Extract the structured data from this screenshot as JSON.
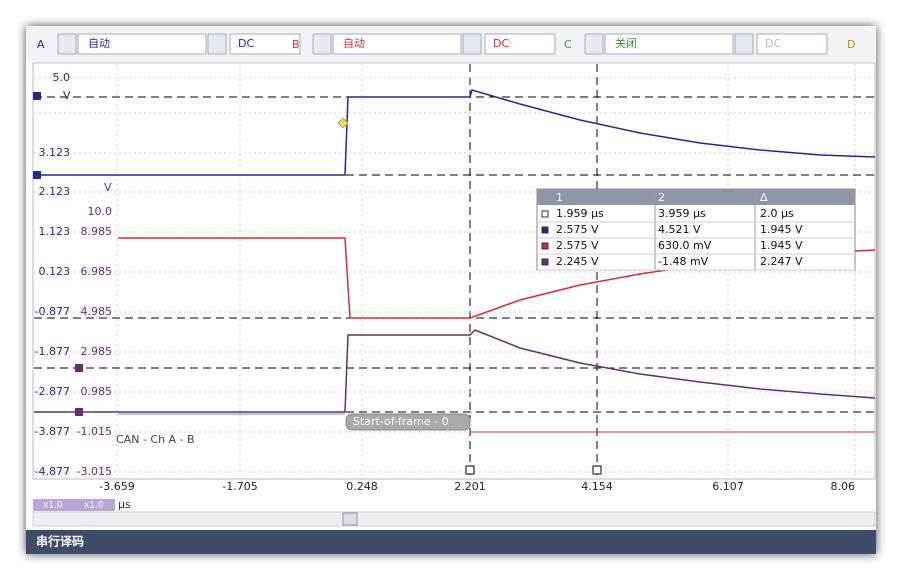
{
  "toolbar": {
    "channels": [
      {
        "name": "A",
        "range": "自动",
        "coupling": "DC"
      },
      {
        "name": "B",
        "range": "自动",
        "coupling": "DC"
      },
      {
        "name": "C",
        "range": "关闭",
        "coupling": "DC"
      },
      {
        "name": "D"
      }
    ]
  },
  "axis_a": {
    "unit": "V",
    "labels": [
      "5.0",
      "3.123",
      "2.123",
      "1.123",
      "0.123",
      "-0.877",
      "-1.877",
      "-2.877",
      "-3.877",
      "-4.877"
    ]
  },
  "axis_b": {
    "unit": "V",
    "labels": [
      "10.0",
      "8.985",
      "6.985",
      "4.985",
      "2.985",
      "0.985",
      "-1.015",
      "-3.015"
    ]
  },
  "x_axis": {
    "labels": [
      "-3.659",
      "-1.705",
      "0.248",
      "2.201",
      "4.154",
      "6.107",
      "8.06"
    ],
    "unit": "µs",
    "zoom": [
      "x1.0",
      "x1.0"
    ]
  },
  "decode": {
    "label": "CAN - Ch A - B",
    "frame": "Start-of-frame - 0"
  },
  "rulers_table": {
    "header": [
      "1",
      "2",
      "Δ"
    ],
    "rows": [
      [
        "1.959 µs",
        "3.959 µs",
        "2.0 µs"
      ],
      [
        "2.575 V",
        "4.521 V",
        "1.945 V"
      ],
      [
        "2.575 V",
        "630.0 mV",
        "1.945 V"
      ],
      [
        "2.245 V",
        "-1.48 mV",
        "2.247 V"
      ]
    ]
  },
  "status_bar": "串行译码"
}
